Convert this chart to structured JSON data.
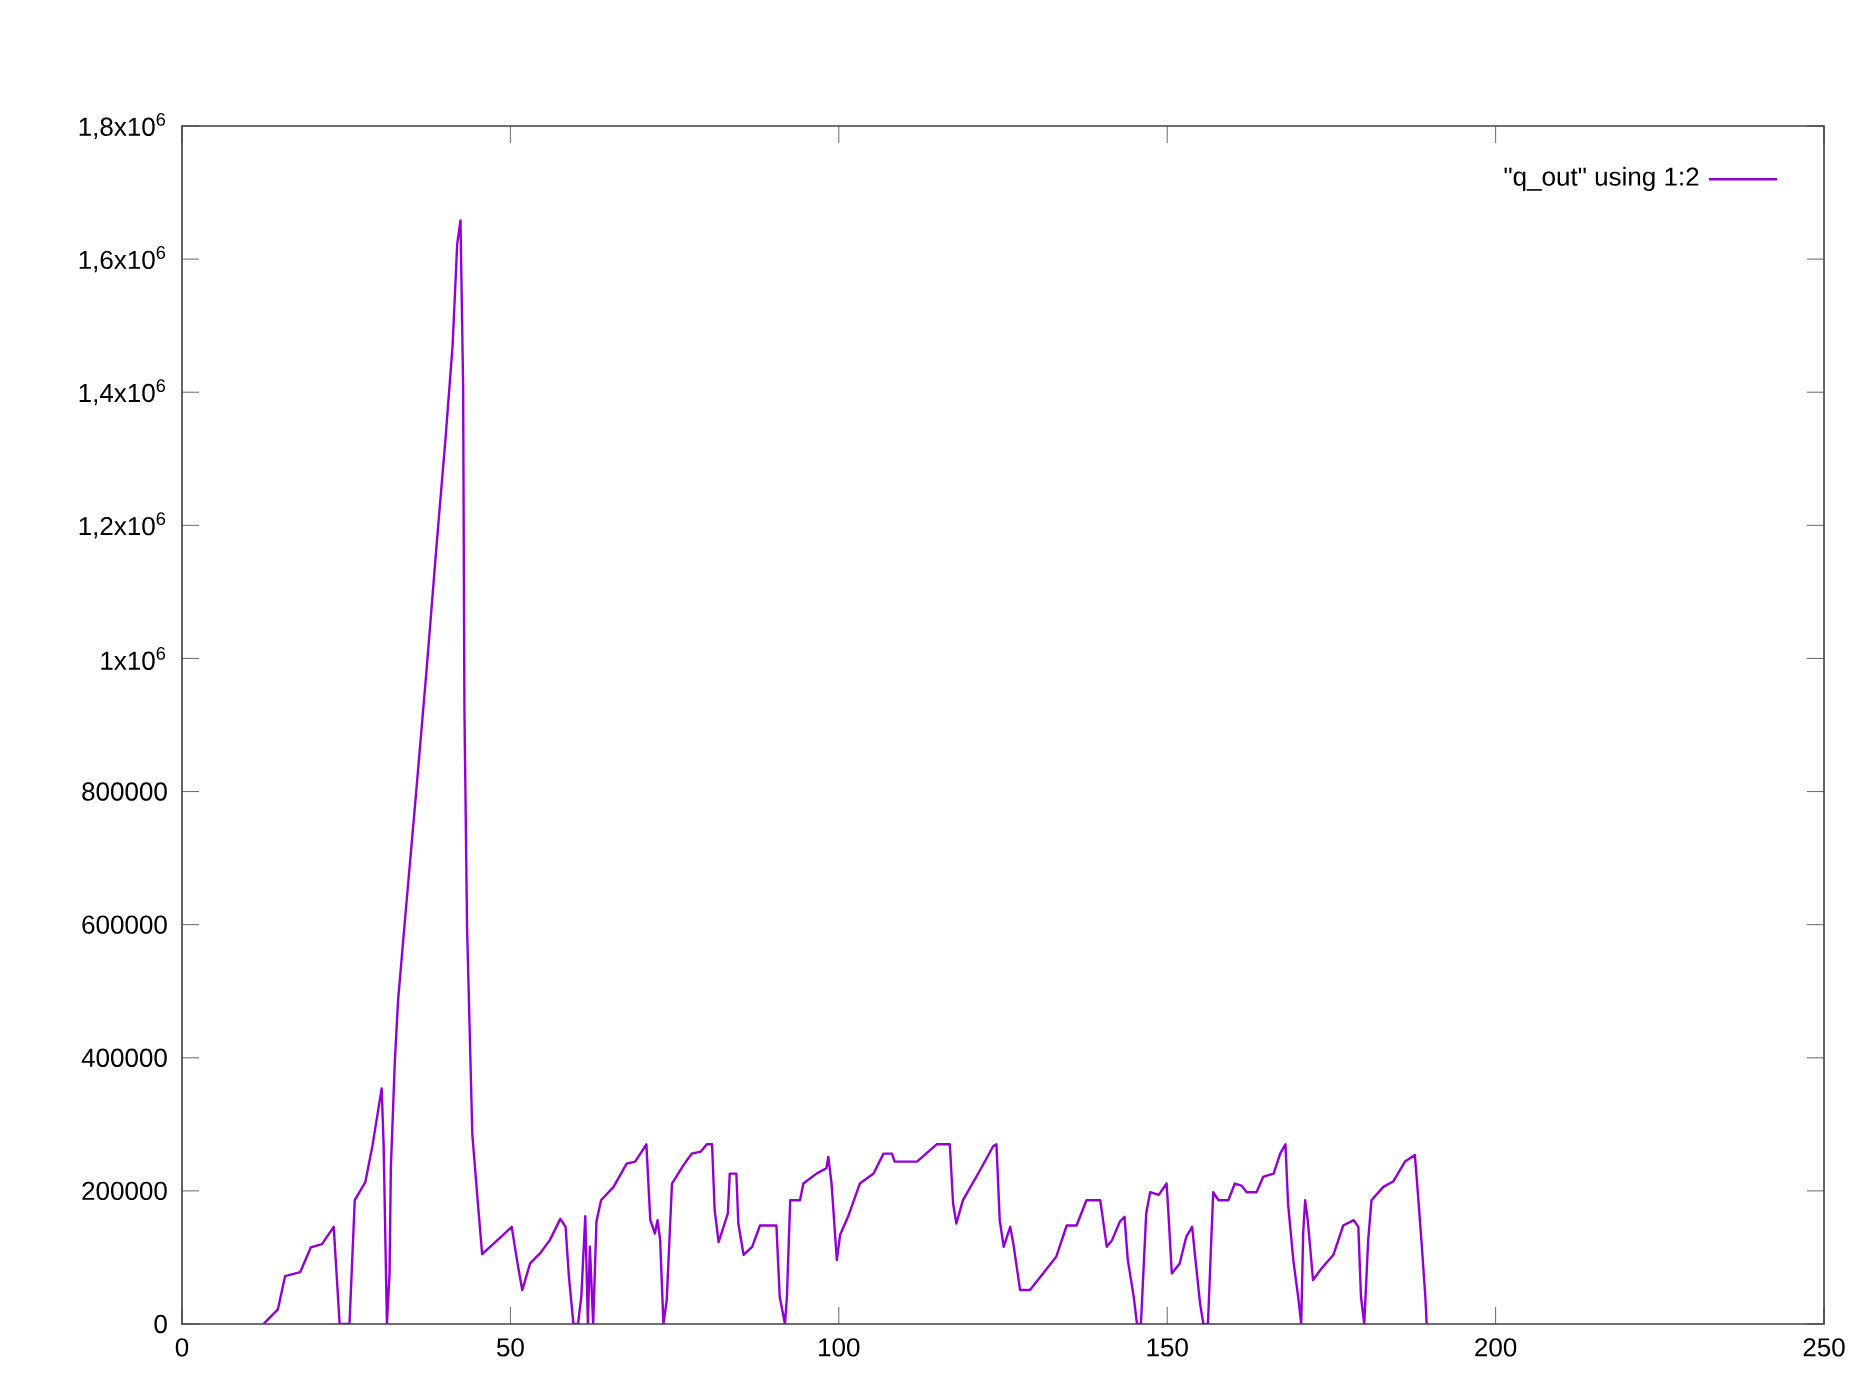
{
  "chart_data": {
    "type": "line",
    "x": [
      12.4,
      14.6,
      15.7,
      18,
      19.6,
      21.3,
      23.1,
      24,
      25.5,
      26.3,
      27.9,
      29,
      30.4,
      30.7,
      31.2,
      31.6,
      31.8,
      32.4,
      32.9,
      34,
      35.6,
      37.3,
      38.8,
      40.1,
      41.2,
      41.9,
      42.4,
      42.8,
      43,
      43.4,
      44.2,
      45.1,
      45.7,
      48.9,
      50.2,
      51,
      51.8,
      53,
      54.5,
      56,
      57.6,
      58.4,
      58.9,
      59.6,
      60.3,
      60.8,
      61.4,
      61.8,
      62.1,
      62.6,
      63.1,
      63.8,
      65.7,
      67.7,
      69,
      70.7,
      71.3,
      72,
      72.4,
      72.8,
      73.3,
      73.8,
      74.6,
      76.3,
      77.6,
      79,
      79.9,
      80.7,
      81.1,
      81.7,
      83.1,
      83.4,
      84.4,
      84.7,
      85.5,
      86.8,
      88,
      90.5,
      91,
      91.8,
      92.1,
      92.6,
      94.1,
      94.6,
      96.6,
      98.1,
      98.4,
      98.9,
      99.7,
      100.2,
      101.4,
      103.2,
      105.3,
      106.8,
      108.1,
      108.5,
      111.9,
      114.9,
      116.9,
      117.4,
      117.9,
      118.9,
      121.5,
      123.5,
      124,
      124.5,
      125.1,
      126.1,
      126.6,
      127.6,
      129.1,
      131.1,
      133.1,
      134.7,
      136.2,
      137.7,
      139.8,
      140.8,
      141.6,
      142.8,
      143.5,
      144,
      144.9,
      145.4,
      146,
      146.8,
      147.4,
      148.7,
      149.9,
      150.1,
      150.7,
      151.9,
      152.9,
      153.8,
      154.2,
      155,
      155.5,
      156.2,
      157,
      157.8,
      159.3,
      160.3,
      161.3,
      162.1,
      163.6,
      164.6,
      166.2,
      167.2,
      168,
      168.4,
      169.2,
      170,
      170.4,
      170.7,
      171,
      171.4,
      172.2,
      173.3,
      175.3,
      176.8,
      178.4,
      179.1,
      179.5,
      180,
      180.6,
      181.1,
      182.9,
      184.4,
      186.2,
      187.7,
      188,
      188.7,
      189.3,
      189.5
    ],
    "series": [
      {
        "name": "\"q_out\" using 1:2",
        "color": "#9400d3",
        "values": [
          0,
          22000,
          72000,
          78000,
          115000,
          120000,
          146000,
          0,
          0,
          186000,
          213000,
          268000,
          354000,
          268000,
          0,
          76000,
          235000,
          394000,
          487000,
          613000,
          793000,
          990000,
          1175000,
          1328000,
          1470000,
          1623000,
          1658000,
          1410000,
          924000,
          596000,
          285000,
          175000,
          105000,
          134000,
          146000,
          96000,
          51000,
          91000,
          106000,
          126000,
          158000,
          146000,
          72000,
          0,
          0,
          42000,
          162000,
          0,
          116000,
          0,
          154000,
          186000,
          206000,
          241000,
          244000,
          270000,
          156000,
          136000,
          156000,
          126000,
          0,
          36000,
          211000,
          238000,
          256000,
          259000,
          270000,
          270000,
          171000,
          123000,
          166000,
          226000,
          226000,
          151000,
          104000,
          116000,
          148000,
          148000,
          41000,
          0,
          41000,
          186000,
          186000,
          211000,
          226000,
          234000,
          251000,
          211000,
          96000,
          134000,
          161000,
          211000,
          226000,
          256000,
          256000,
          244000,
          244000,
          270000,
          270000,
          181000,
          151000,
          186000,
          231000,
          267000,
          270000,
          156000,
          116000,
          146000,
          119000,
          51000,
          51000,
          76000,
          101000,
          148000,
          148000,
          186000,
          186000,
          116000,
          126000,
          154000,
          161000,
          96000,
          41000,
          0,
          0,
          166000,
          198000,
          194000,
          211000,
          181000,
          76000,
          91000,
          131000,
          146000,
          106000,
          31000,
          0,
          0,
          198000,
          186000,
          186000,
          211000,
          208000,
          198000,
          198000,
          221000,
          226000,
          256000,
          270000,
          181000,
          96000,
          36000,
          0,
          136000,
          186000,
          156000,
          66000,
          81000,
          104000,
          148000,
          156000,
          146000,
          41000,
          0,
          126000,
          186000,
          206000,
          214000,
          244000,
          254000,
          218000,
          126000,
          41000,
          0
        ]
      }
    ],
    "xlim": [
      0,
      250
    ],
    "xticks": [
      0,
      50,
      100,
      150,
      200,
      250
    ],
    "ylim": [
      0,
      1800000
    ],
    "yticks": [
      0,
      200000,
      400000,
      600000,
      800000,
      {
        "value": 1000000,
        "label": "1x10$^{6}$"
      },
      {
        "value": 1200000,
        "label": "1,2x10$^{6}$"
      },
      {
        "value": 1400000,
        "label": "1,4x10$^{6}$"
      },
      {
        "value": 1600000,
        "label": "1,6x10$^{6}$"
      },
      {
        "value": 1800000,
        "label": "1,8x10$^{6}$"
      }
    ],
    "grid": false,
    "legend": "top right"
  }
}
